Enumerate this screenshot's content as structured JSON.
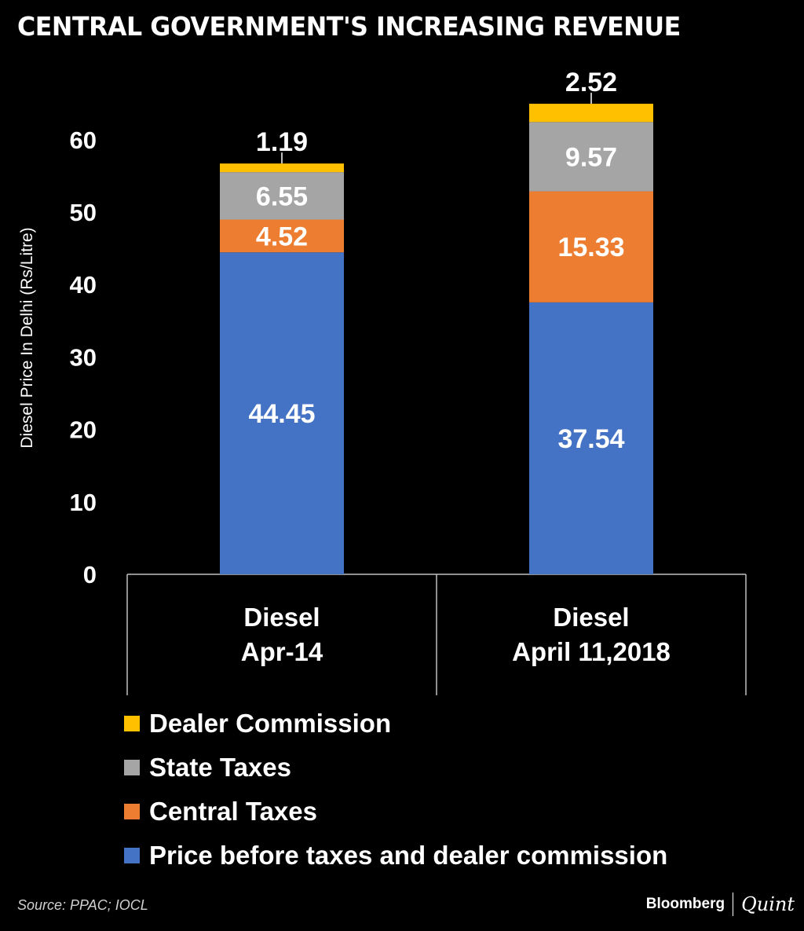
{
  "title": "CENTRAL GOVERNMENT'S INCREASING REVENUE",
  "source": "Source: PPAC; IOCL",
  "brand": {
    "primary": "Bloomberg",
    "secondary": "Quint"
  },
  "chart_data": {
    "type": "bar",
    "stacked": true,
    "ylabel": "Diesel Price In Delhi (Rs/Litre)",
    "ylim": [
      0,
      60
    ],
    "yticks": [
      0,
      10,
      20,
      30,
      40,
      50,
      60
    ],
    "categories": [
      [
        "Diesel",
        "Apr-14"
      ],
      [
        "Diesel",
        "April 11,2018"
      ]
    ],
    "series": [
      {
        "name": "Price before taxes and dealer commission",
        "color": "#4472C4",
        "values": [
          44.45,
          37.54
        ]
      },
      {
        "name": "Central Taxes",
        "color": "#ED7D31",
        "values": [
          4.52,
          15.33
        ]
      },
      {
        "name": "State Taxes",
        "color": "#A5A5A5",
        "values": [
          6.55,
          9.57
        ]
      },
      {
        "name": "Dealer Commission",
        "color": "#FFC000",
        "values": [
          1.19,
          2.52
        ]
      }
    ],
    "legend_order": [
      "Dealer Commission",
      "State Taxes",
      "Central Taxes",
      "Price before taxes and dealer commission"
    ],
    "legend_position": "bottom"
  }
}
